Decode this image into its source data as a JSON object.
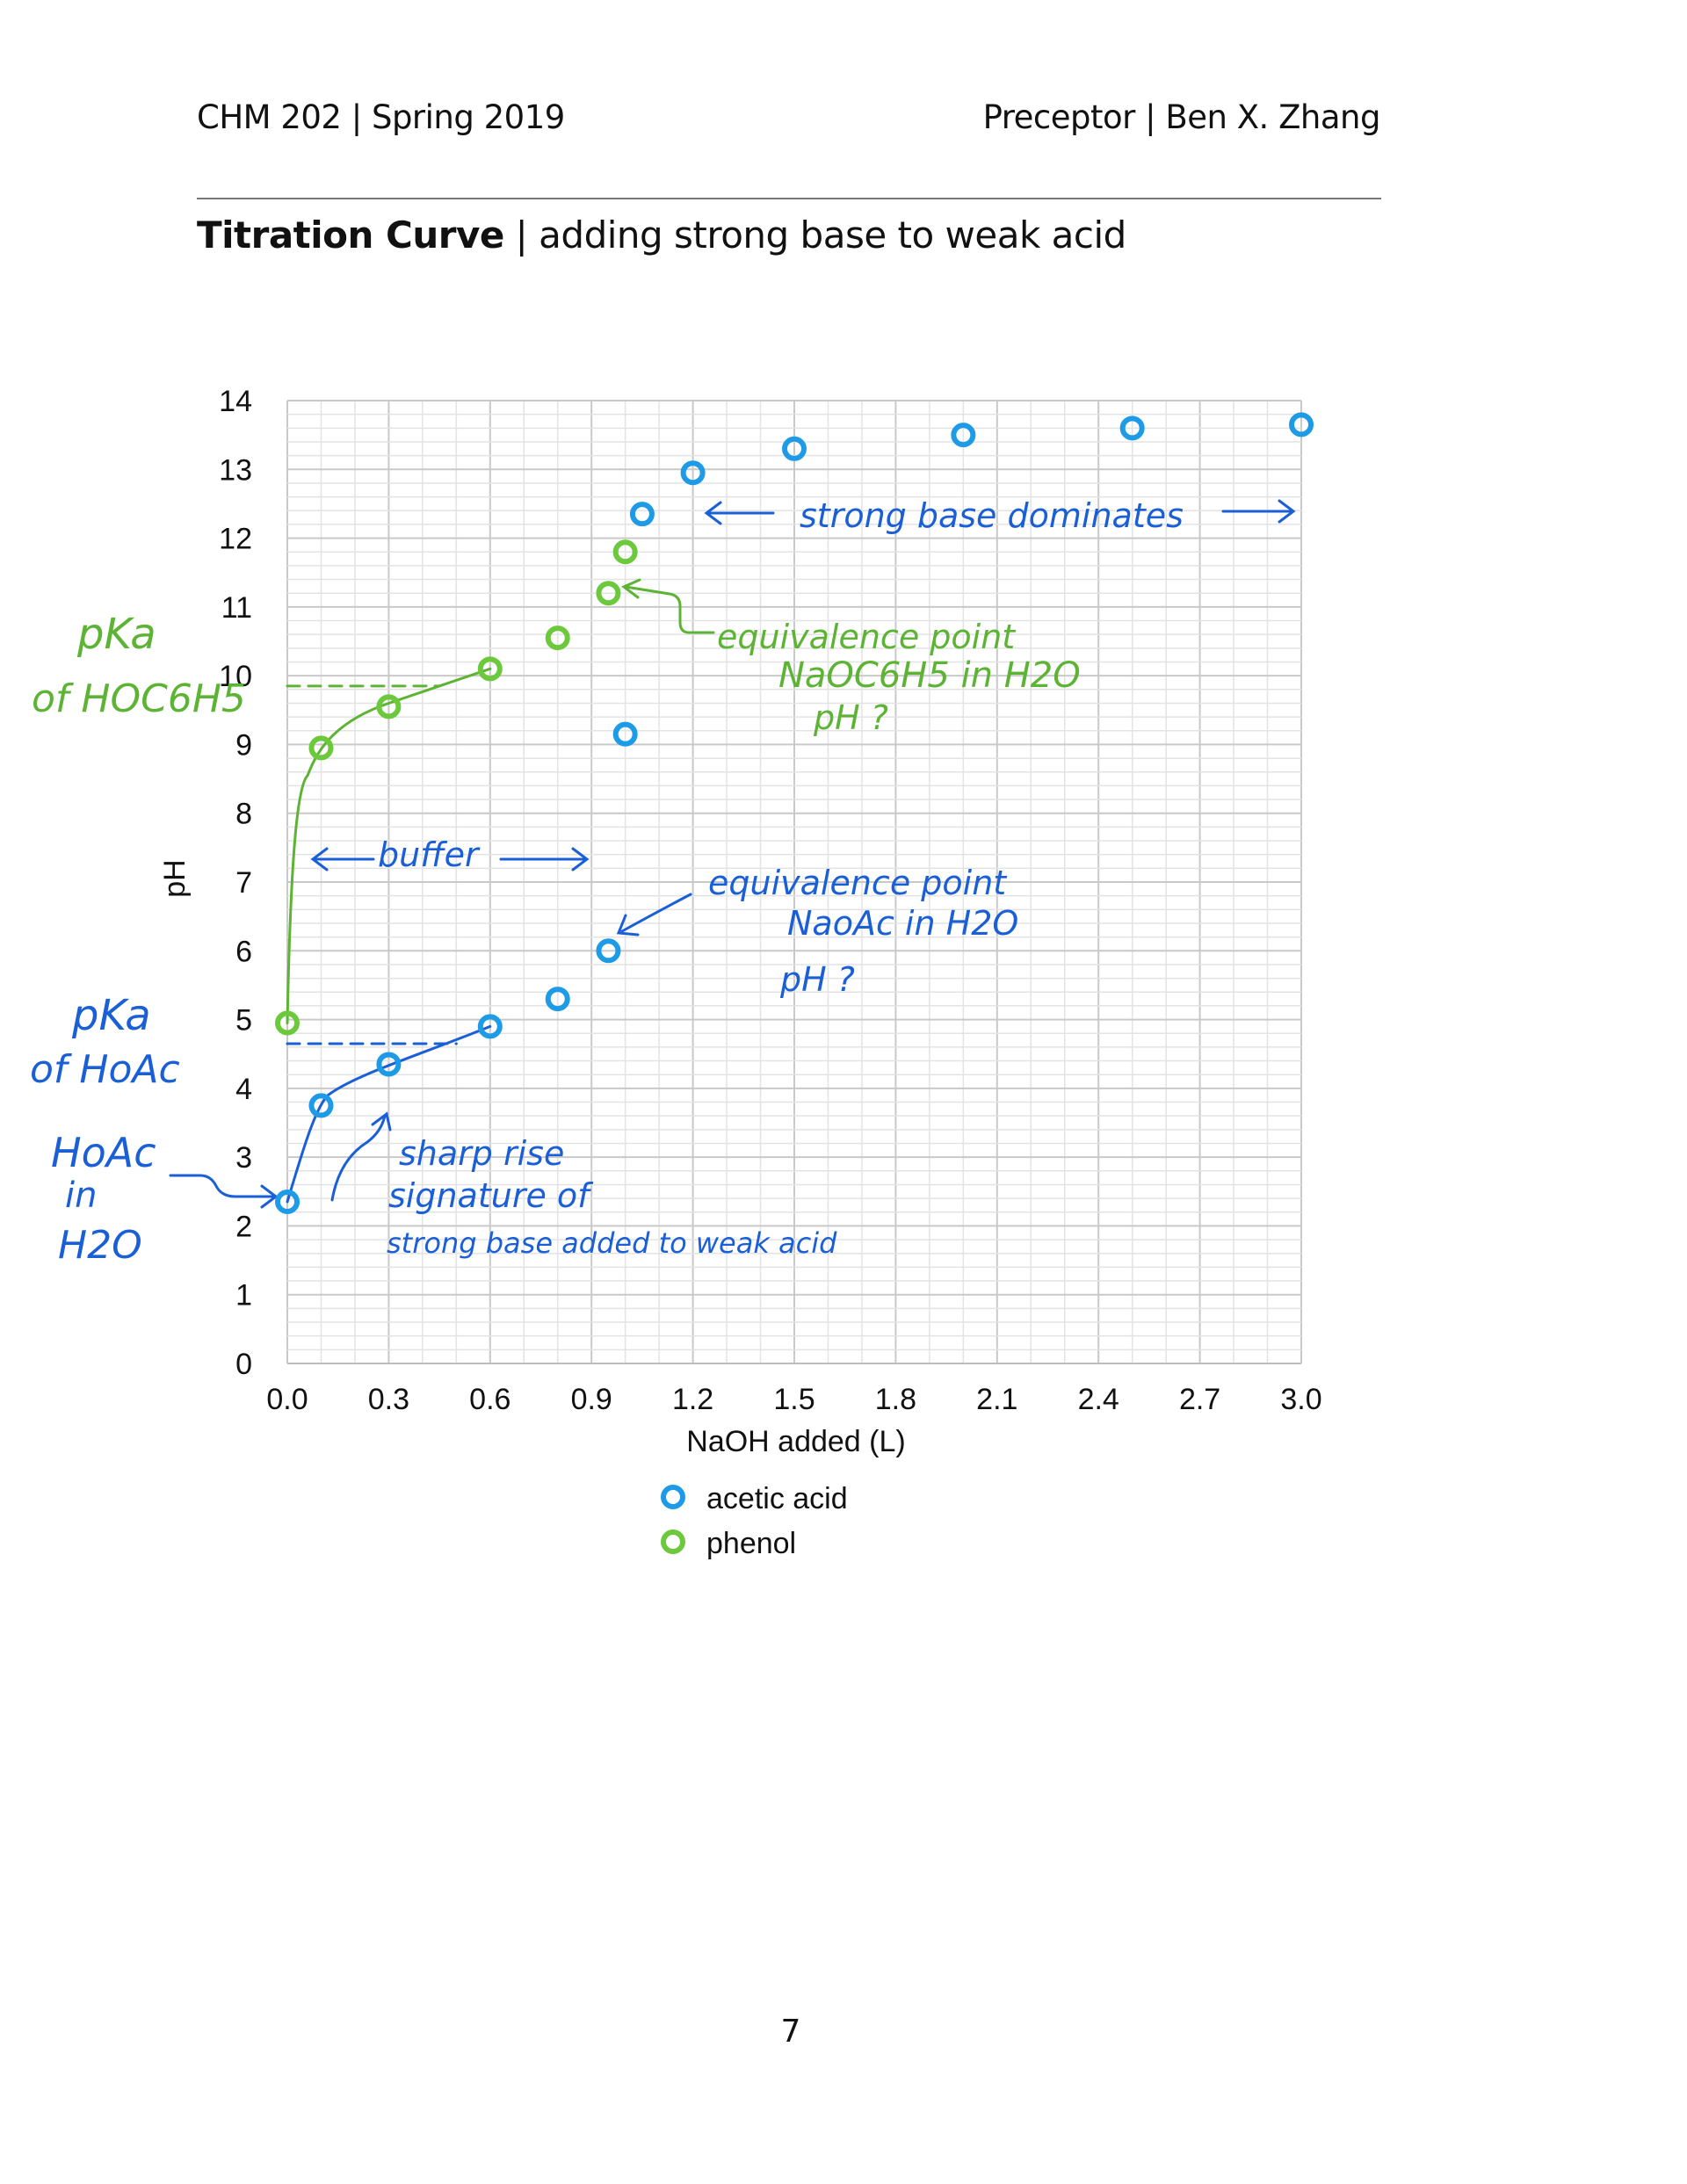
{
  "header": {
    "left": "CHM 202 | Spring 2019",
    "right": "Preceptor | Ben X. Zhang"
  },
  "title": {
    "bold": "Titration Curve",
    "rest": " | adding strong base to weak acid"
  },
  "page_number": "7",
  "colors": {
    "acetic": "#1e9be6",
    "phenol": "#6cc93c",
    "ink_blue": "#1a5fd6",
    "ink_green": "#5db334"
  },
  "chart_data": {
    "type": "scatter",
    "xlabel": "NaOH added (L)",
    "ylabel": "pH",
    "xlim": [
      0,
      3
    ],
    "ylim": [
      0,
      14
    ],
    "x_ticks": [
      "0.0",
      "0.3",
      "0.6",
      "0.9",
      "1.2",
      "1.5",
      "1.8",
      "2.1",
      "2.4",
      "2.7",
      "3.0"
    ],
    "y_ticks": [
      "0",
      "1",
      "2",
      "3",
      "4",
      "5",
      "6",
      "7",
      "8",
      "9",
      "10",
      "11",
      "12",
      "13",
      "14"
    ],
    "grid": true,
    "legend_position": "bottom",
    "series": [
      {
        "name": "acetic acid",
        "color": "#1e9be6",
        "points": [
          [
            0.0,
            2.35
          ],
          [
            0.1,
            3.75
          ],
          [
            0.3,
            4.35
          ],
          [
            0.6,
            4.9
          ],
          [
            0.8,
            5.3
          ],
          [
            0.95,
            6.0
          ],
          [
            1.0,
            9.15
          ],
          [
            1.05,
            12.35
          ],
          [
            1.2,
            12.95
          ],
          [
            1.5,
            13.3
          ],
          [
            2.0,
            13.5
          ],
          [
            2.5,
            13.6
          ],
          [
            3.0,
            13.65
          ]
        ]
      },
      {
        "name": "phenol",
        "color": "#6cc93c",
        "points": [
          [
            0.0,
            4.95
          ],
          [
            0.1,
            8.95
          ],
          [
            0.3,
            9.55
          ],
          [
            0.6,
            10.1
          ],
          [
            0.8,
            10.55
          ],
          [
            0.95,
            11.2
          ],
          [
            1.0,
            11.8
          ]
        ]
      }
    ],
    "annotations": {
      "pka_phenol": [
        "pKa",
        "of HOC6H5"
      ],
      "pka_acetic": [
        "pKa",
        "of HoAc"
      ],
      "hoac_in_water": [
        "HoAc",
        "in",
        "H2O"
      ],
      "buffer": "buffer",
      "strong_base": "strong base dominates",
      "eq_phenol": [
        "equivalence point",
        "NaOC6H5 in H2O",
        "pH ?"
      ],
      "eq_acetic": [
        "equivalence point",
        "NaoAc in H2O",
        "pH ?"
      ],
      "sharp_rise": [
        "sharp rise",
        "signature of",
        "strong base added to weak acid"
      ]
    }
  }
}
